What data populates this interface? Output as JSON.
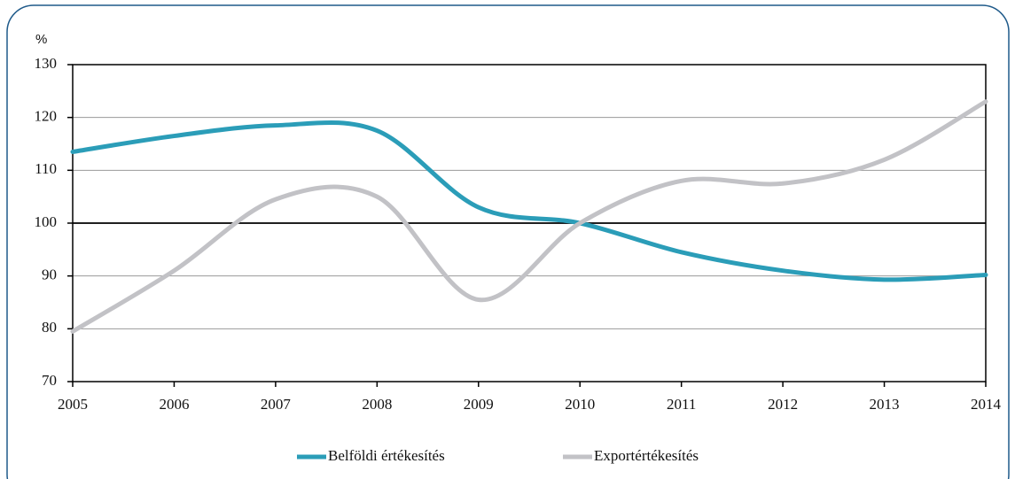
{
  "chart_data": {
    "type": "line",
    "y_label": "%",
    "x": [
      2005,
      2006,
      2007,
      2008,
      2009,
      2010,
      2011,
      2012,
      2013,
      2014
    ],
    "xlim": [
      2005,
      2014
    ],
    "xticks": [
      2005,
      2006,
      2007,
      2008,
      2009,
      2010,
      2011,
      2012,
      2013,
      2014
    ],
    "ylim": [
      70,
      130
    ],
    "yticks": [
      70,
      80,
      90,
      100,
      110,
      120,
      130
    ],
    "grid": true,
    "baseline": 100,
    "smooth": true,
    "legend": "bottom",
    "series": [
      {
        "name": "Belföldi értékesítés",
        "color": "#2b9db8",
        "values": [
          113.5,
          116.5,
          118.5,
          117.5,
          103,
          100,
          94.5,
          91,
          89.3,
          90.2
        ]
      },
      {
        "name": "Exportértékesítés",
        "color": "#c2c2c6",
        "values": [
          79.5,
          91,
          104.5,
          105,
          85.5,
          100,
          108,
          107.5,
          112,
          123
        ]
      }
    ]
  }
}
